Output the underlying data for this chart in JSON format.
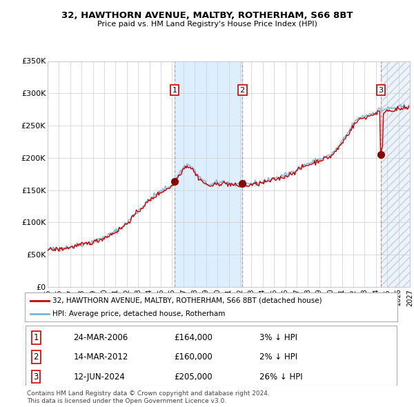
{
  "title": "32, HAWTHORN AVENUE, MALTBY, ROTHERHAM, S66 8BT",
  "subtitle": "Price paid vs. HM Land Registry's House Price Index (HPI)",
  "footer1": "Contains HM Land Registry data © Crown copyright and database right 2024.",
  "footer2": "This data is licensed under the Open Government Licence v3.0.",
  "transactions": [
    {
      "num": 1,
      "date": "24-MAR-2006",
      "price": 164000,
      "pct": "3%",
      "dir": "↓",
      "year": 2006.22
    },
    {
      "num": 2,
      "date": "14-MAR-2012",
      "price": 160000,
      "pct": "2%",
      "dir": "↓",
      "year": 2012.2
    },
    {
      "num": 3,
      "date": "12-JUN-2024",
      "price": 205000,
      "pct": "26%",
      "dir": "↓",
      "year": 2024.45
    }
  ],
  "xlim": [
    1995.0,
    2027.0
  ],
  "ylim": [
    0,
    350000
  ],
  "yticks": [
    0,
    50000,
    100000,
    150000,
    200000,
    250000,
    300000,
    350000
  ],
  "ytick_labels": [
    "£0",
    "£50K",
    "£100K",
    "£150K",
    "£200K",
    "£250K",
    "£300K",
    "£350K"
  ],
  "xtick_years": [
    1995,
    1996,
    1997,
    1998,
    1999,
    2000,
    2001,
    2002,
    2003,
    2004,
    2005,
    2006,
    2007,
    2008,
    2009,
    2010,
    2011,
    2012,
    2013,
    2014,
    2015,
    2016,
    2017,
    2018,
    2019,
    2020,
    2021,
    2022,
    2023,
    2024,
    2025,
    2026,
    2027
  ],
  "hpi_color": "#7ab3d9",
  "price_color": "#cc0000",
  "dot_color": "#8b0000",
  "shade_color": "#ddeeff",
  "grid_color": "#cccccc",
  "bg_color": "#ffffff",
  "marker_box_color": "#cc0000",
  "vline1_color": "#888888",
  "vline2_color": "#888888",
  "vline3_color": "#dd6666"
}
